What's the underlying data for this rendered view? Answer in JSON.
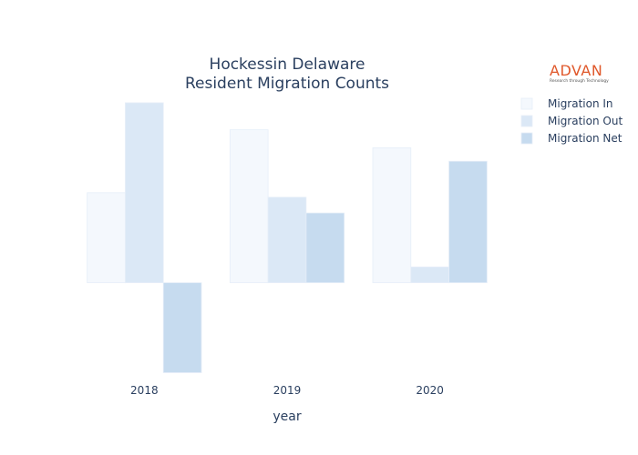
{
  "logo": {
    "name": "ADVAN",
    "tagline": "Research through Technology",
    "color": "#e0582b"
  },
  "chart_data": {
    "type": "bar",
    "title_lines": [
      "Hockessin Delaware",
      "Resident Migration Counts"
    ],
    "xlabel": "year",
    "ylabel": "",
    "categories": [
      "2018",
      "2019",
      "2020"
    ],
    "series": [
      {
        "name": "Migration In",
        "values": [
          20,
          34,
          30
        ],
        "color": "#f4f8fd"
      },
      {
        "name": "Migration Out",
        "values": [
          40,
          19,
          3.5
        ],
        "color": "#dbe8f6"
      },
      {
        "name": "Migration Net",
        "values": [
          -20,
          15.5,
          27
        ],
        "color": "#c6dbef"
      }
    ],
    "ylim": [
      -20.5,
      41
    ],
    "grid": false,
    "y_tick_labels_shown": false,
    "legend_position": "top-right"
  }
}
